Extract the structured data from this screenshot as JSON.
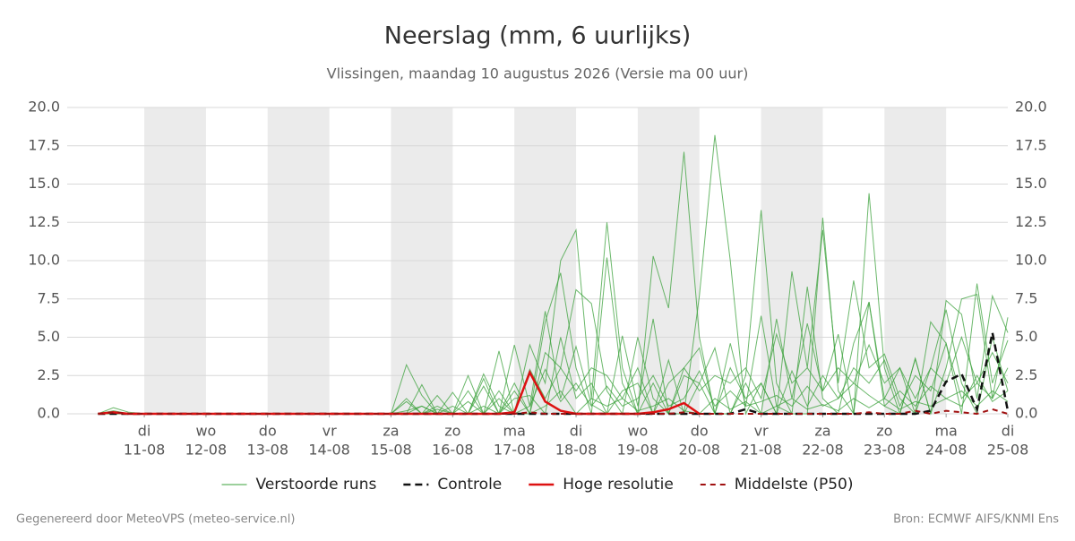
{
  "chart_data": {
    "type": "line",
    "title": "Neerslag (mm, 6 uurlijks)",
    "subtitle": "Vlissingen, maandag 10 augustus 2026 (Versie ma 00 uur)",
    "footer_left": "Gegenereerd door MeteoVPS (meteo-service.nl)",
    "footer_right": "Bron: ECMWF AIFS/KNMI Ens",
    "xlim": [
      -6,
      360
    ],
    "xticks": [
      {
        "value": 24,
        "label": "11-08"
      },
      {
        "value": 48,
        "label": "12-08"
      },
      {
        "value": 72,
        "label": "13-08"
      },
      {
        "value": 96,
        "label": "14-08"
      },
      {
        "value": 120,
        "label": "15-08"
      },
      {
        "value": 144,
        "label": "16-08"
      },
      {
        "value": 168,
        "label": "17-08"
      },
      {
        "value": 192,
        "label": "18-08"
      },
      {
        "value": 216,
        "label": "19-08"
      },
      {
        "value": 240,
        "label": "20-08"
      },
      {
        "value": 264,
        "label": "21-08"
      },
      {
        "value": 288,
        "label": "22-08"
      },
      {
        "value": 312,
        "label": "23-08"
      },
      {
        "value": 336,
        "label": "24-08"
      },
      {
        "value": 360,
        "label": "25-08"
      }
    ],
    "xtick_days": [
      "di",
      "wo",
      "do",
      "vr",
      "za",
      "zo",
      "ma",
      "di",
      "wo",
      "do",
      "vr",
      "za",
      "zo",
      "ma",
      "di"
    ],
    "shaded_bands": [
      [
        24,
        48
      ],
      [
        72,
        96
      ],
      [
        120,
        144
      ],
      [
        168,
        192
      ],
      [
        216,
        240
      ],
      [
        264,
        288
      ],
      [
        312,
        336
      ]
    ],
    "ylim": [
      0,
      20
    ],
    "yticks": [
      {
        "value": 0,
        "label": "0.0"
      },
      {
        "value": 2.5,
        "label": "2.5"
      },
      {
        "value": 5,
        "label": "5.0"
      },
      {
        "value": 7.5,
        "label": "7.5"
      },
      {
        "value": 10,
        "label": "10.0"
      },
      {
        "value": 12.5,
        "label": "12.5"
      },
      {
        "value": 15,
        "label": "15.0"
      },
      {
        "value": 17.5,
        "label": "17.5"
      },
      {
        "value": 20,
        "label": "20.0"
      }
    ],
    "grid": true,
    "right_axis": true,
    "x": [
      6,
      12,
      18,
      24,
      30,
      36,
      42,
      48,
      54,
      60,
      66,
      72,
      78,
      84,
      90,
      96,
      102,
      108,
      114,
      120,
      126,
      132,
      138,
      144,
      150,
      156,
      162,
      168,
      174,
      180,
      186,
      192,
      198,
      204,
      210,
      216,
      222,
      228,
      234,
      240,
      246,
      252,
      258,
      264,
      270,
      276,
      282,
      288,
      294,
      300,
      306,
      312,
      318,
      324,
      330,
      336,
      342,
      348,
      354,
      360
    ],
    "ensemble": {
      "name": "Verstoorde runs",
      "color": "#3aa03a",
      "members": [
        [
          0,
          0.4,
          0.1,
          0,
          0,
          0,
          0,
          0,
          0,
          0,
          0,
          0,
          0,
          0,
          0,
          0,
          0,
          0,
          0,
          0,
          3.2,
          1.2,
          0,
          0,
          0,
          2.6,
          0.5,
          0,
          0,
          6.0,
          9.2,
          3.0,
          0,
          10.2,
          2.0,
          0,
          10.3,
          6.9,
          17.1,
          5.0,
          0,
          0,
          2.5,
          13.3,
          2.0,
          0,
          0,
          12.8,
          1.5,
          0,
          14.4,
          3.0,
          0,
          3.6,
          0,
          7.4,
          6.5,
          1.0,
          7.7,
          5.3
        ],
        [
          0,
          0.2,
          0,
          0,
          0,
          0,
          0,
          0,
          0,
          0,
          0,
          0,
          0,
          0,
          0,
          0,
          0,
          0,
          0,
          0,
          0,
          0,
          0.5,
          0,
          1.5,
          0,
          4.1,
          0,
          4.5,
          2.0,
          10.0,
          12.0,
          1.0,
          12.5,
          3.0,
          0,
          2.0,
          0,
          0,
          7.7,
          18.2,
          10.0,
          0,
          2.0,
          0,
          9.3,
          3.0,
          12.0,
          2.0,
          8.7,
          3.0,
          3.9,
          1.0,
          0,
          6.0,
          4.6,
          0,
          8.5,
          2.0,
          4.8
        ],
        [
          0,
          0,
          0,
          0,
          0,
          0,
          0,
          0,
          0,
          0,
          0,
          0,
          0,
          0,
          0,
          0,
          0,
          0,
          0,
          0,
          0,
          1.9,
          0,
          1.4,
          0,
          0,
          0,
          4.5,
          0.5,
          6.7,
          1.0,
          4.4,
          0.6,
          0,
          5.1,
          0.5,
          6.2,
          0,
          3.0,
          4.3,
          0,
          4.6,
          0.5,
          6.4,
          0.5,
          0,
          8.3,
          1.0,
          0,
          4.6,
          7.3,
          0.5,
          0,
          3.6,
          0,
          3.0,
          7.5,
          7.8,
          1.0,
          6.3
        ],
        [
          0,
          0.1,
          0,
          0,
          0,
          0,
          0,
          0,
          0,
          0,
          0,
          0,
          0,
          0,
          0,
          0,
          0,
          0,
          0,
          0,
          1.0,
          0,
          1.2,
          0,
          0,
          2.3,
          0,
          2.0,
          0,
          4.0,
          3.0,
          8.1,
          7.2,
          1.5,
          0,
          5.0,
          1.0,
          0,
          2.5,
          2.0,
          4.3,
          0,
          2.0,
          0,
          6.2,
          1.0,
          5.9,
          1.5,
          5.2,
          0,
          7.3,
          1.0,
          3.0,
          0,
          3.0,
          6.8,
          2.0,
          0,
          5.0,
          1.5
        ],
        [
          0,
          0,
          0,
          0,
          0,
          0,
          0,
          0,
          0,
          0,
          0,
          0,
          0,
          0,
          0,
          0,
          0,
          0,
          0,
          0,
          0,
          0.5,
          0,
          0,
          2.5,
          0,
          1.5,
          0,
          2.9,
          1.0,
          3.0,
          1.5,
          3.0,
          2.5,
          1.0,
          3.0,
          0,
          2.0,
          3.0,
          1.5,
          2.5,
          2.0,
          3.0,
          1.0,
          5.2,
          2.0,
          3.0,
          1.5,
          3.0,
          2.0,
          4.5,
          2.0,
          3.0,
          1.0,
          3.0,
          2.0,
          5.0,
          2.0,
          4.0,
          2.0
        ],
        [
          0,
          0.1,
          0,
          0,
          0,
          0,
          0,
          0,
          0,
          0,
          0,
          0,
          0,
          0,
          0,
          0,
          0,
          0,
          0,
          0,
          0.8,
          0,
          0,
          0.5,
          0,
          1.8,
          0,
          1.0,
          1.2,
          0,
          5.0,
          1.0,
          2.0,
          0,
          1.5,
          2.0,
          0,
          3.5,
          0,
          2.0,
          0,
          3.0,
          1.0,
          2.0,
          0,
          2.8,
          0.5,
          2.5,
          1.0,
          3.0,
          2.0,
          3.5,
          0.5,
          2.5,
          1.5,
          4.6,
          1.0,
          2.0,
          1.0,
          3.0
        ],
        [
          0,
          0,
          0,
          0,
          0,
          0,
          0,
          0,
          0,
          0,
          0,
          0,
          0,
          0,
          0,
          0,
          0,
          0,
          0,
          0,
          0,
          0,
          0.3,
          0,
          0.8,
          0,
          1.0,
          0,
          0.5,
          2.9,
          0.8,
          2.0,
          0.5,
          1.8,
          0.5,
          1.0,
          2.5,
          0.5,
          1.0,
          2.8,
          0.5,
          1.5,
          0.5,
          0.8,
          1.2,
          0.5,
          1.8,
          0.5,
          1.0,
          2.0,
          1.2,
          0.5,
          1.5,
          0.5,
          1.8,
          1.0,
          0.5,
          2.5,
          0.8,
          1.5
        ],
        [
          0,
          0,
          0,
          0,
          0,
          0,
          0,
          0,
          0,
          0,
          0,
          0,
          0,
          0,
          0,
          0,
          0,
          0,
          0,
          0,
          0.2,
          0.5,
          0,
          0,
          0,
          0.5,
          0,
          1.5,
          0,
          0.5,
          1.5,
          0,
          1.0,
          0.5,
          1.0,
          0.2,
          0.5,
          1.0,
          0.2,
          0,
          1.0,
          0.3,
          0.8,
          0,
          0.5,
          1.0,
          0.3,
          0.6,
          0.2,
          1.0,
          0.4,
          1.0,
          0.3,
          0.8,
          0.5,
          1.0,
          1.5,
          0.5,
          1.5,
          0.8
        ]
      ]
    },
    "series": [
      {
        "name": "Controle",
        "color": "#111111",
        "dash": "8 5",
        "width": 2.5,
        "values": [
          0,
          0,
          0,
          0,
          0,
          0,
          0,
          0,
          0,
          0,
          0,
          0,
          0,
          0,
          0,
          0,
          0,
          0,
          0,
          0,
          0,
          0,
          0,
          0,
          0,
          0,
          0,
          0,
          0,
          0,
          0,
          0,
          0,
          0,
          0,
          0,
          0,
          0,
          0,
          0,
          0,
          0,
          0.3,
          0,
          0,
          0,
          0,
          0,
          0,
          0,
          0,
          0,
          0,
          0,
          0.2,
          2.1,
          2.6,
          0.3,
          5.3,
          0.2
        ]
      },
      {
        "name": "Hoge resolutie",
        "color": "#dd1111",
        "dash": "none",
        "width": 2.5,
        "values": [
          0,
          0.1,
          0,
          0,
          0,
          0,
          0,
          0,
          0,
          0,
          0,
          0,
          0,
          0,
          0,
          0,
          0,
          0,
          0,
          0,
          0,
          0,
          0,
          0,
          0,
          0,
          0,
          0.1,
          2.7,
          0.8,
          0.2,
          0,
          0,
          0,
          0,
          0,
          0.1,
          0.3,
          0.7,
          0,
          null,
          null,
          null,
          null,
          null,
          null,
          null,
          null,
          null,
          null,
          null,
          null,
          null,
          null,
          null,
          null,
          null,
          null,
          null,
          null
        ]
      },
      {
        "name": "Middelste (P50)",
        "color": "#a01010",
        "dash": "6 5",
        "width": 2,
        "values": [
          0,
          0.1,
          0,
          0,
          0,
          0,
          0,
          0,
          0,
          0,
          0,
          0,
          0,
          0,
          0,
          0,
          0,
          0,
          0,
          0,
          0,
          0,
          0,
          0,
          0,
          0,
          0,
          0,
          0.1,
          0,
          0,
          0,
          0,
          0,
          0,
          0,
          0,
          0,
          0.1,
          0,
          0,
          0,
          0,
          0,
          0,
          0,
          0,
          0,
          0,
          0,
          0.1,
          0,
          0,
          0.2,
          0,
          0.2,
          0.1,
          0,
          0.3,
          0
        ]
      }
    ]
  }
}
